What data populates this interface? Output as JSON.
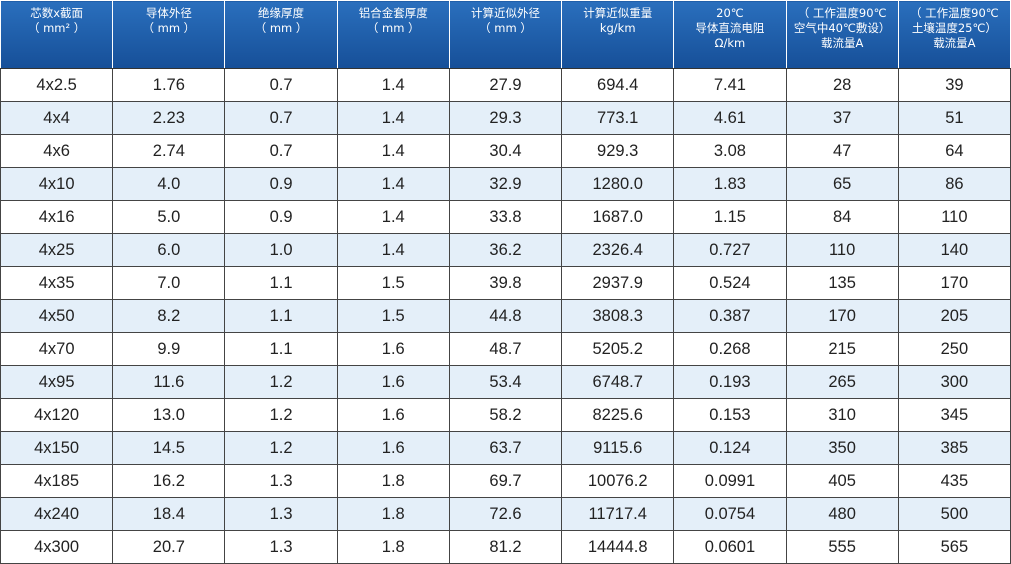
{
  "table": {
    "header": [
      [
        "芯数x截面",
        "（ mm² ）"
      ],
      [
        "导体外径",
        "（ mm ）"
      ],
      [
        "绝缘厚度",
        "（ mm ）"
      ],
      [
        "铝合金套厚度",
        "（ mm ）"
      ],
      [
        "计算近似外径",
        "（ mm ）"
      ],
      [
        "计算近似重量",
        "kg/km"
      ],
      [
        "20℃",
        "导体直流电阻",
        "Ω/km"
      ],
      [
        "（ 工作温度90℃",
        "空气中40℃敷设）",
        "载流量A"
      ],
      [
        "（ 工作温度90℃",
        "土壤温度25℃）",
        "载流量A"
      ]
    ],
    "rows": [
      [
        "4x2.5",
        "1.76",
        "0.7",
        "1.4",
        "27.9",
        "694.4",
        "7.41",
        "28",
        "39"
      ],
      [
        "4x4",
        "2.23",
        "0.7",
        "1.4",
        "29.3",
        "773.1",
        "4.61",
        "37",
        "51"
      ],
      [
        "4x6",
        "2.74",
        "0.7",
        "1.4",
        "30.4",
        "929.3",
        "3.08",
        "47",
        "64"
      ],
      [
        "4x10",
        "4.0",
        "0.9",
        "1.4",
        "32.9",
        "1280.0",
        "1.83",
        "65",
        "86"
      ],
      [
        "4x16",
        "5.0",
        "0.9",
        "1.4",
        "33.8",
        "1687.0",
        "1.15",
        "84",
        "110"
      ],
      [
        "4x25",
        "6.0",
        "1.0",
        "1.4",
        "36.2",
        "2326.4",
        "0.727",
        "110",
        "140"
      ],
      [
        "4x35",
        "7.0",
        "1.1",
        "1.5",
        "39.8",
        "2937.9",
        "0.524",
        "135",
        "170"
      ],
      [
        "4x50",
        "8.2",
        "1.1",
        "1.5",
        "44.8",
        "3808.3",
        "0.387",
        "170",
        "205"
      ],
      [
        "4x70",
        "9.9",
        "1.1",
        "1.6",
        "48.7",
        "5205.2",
        "0.268",
        "215",
        "250"
      ],
      [
        "4x95",
        "11.6",
        "1.2",
        "1.6",
        "53.4",
        "6748.7",
        "0.193",
        "265",
        "300"
      ],
      [
        "4x120",
        "13.0",
        "1.2",
        "1.6",
        "58.2",
        "8225.6",
        "0.153",
        "310",
        "345"
      ],
      [
        "4x150",
        "14.5",
        "1.2",
        "1.6",
        "63.7",
        "9115.6",
        "0.124",
        "350",
        "385"
      ],
      [
        "4x185",
        "16.2",
        "1.3",
        "1.8",
        "69.7",
        "10076.2",
        "0.0991",
        "405",
        "435"
      ],
      [
        "4x240",
        "18.4",
        "1.3",
        "1.8",
        "72.6",
        "11717.4",
        "0.0754",
        "480",
        "500"
      ],
      [
        "4x300",
        "20.7",
        "1.3",
        "1.8",
        "81.2",
        "14444.8",
        "0.0601",
        "555",
        "565"
      ]
    ]
  }
}
